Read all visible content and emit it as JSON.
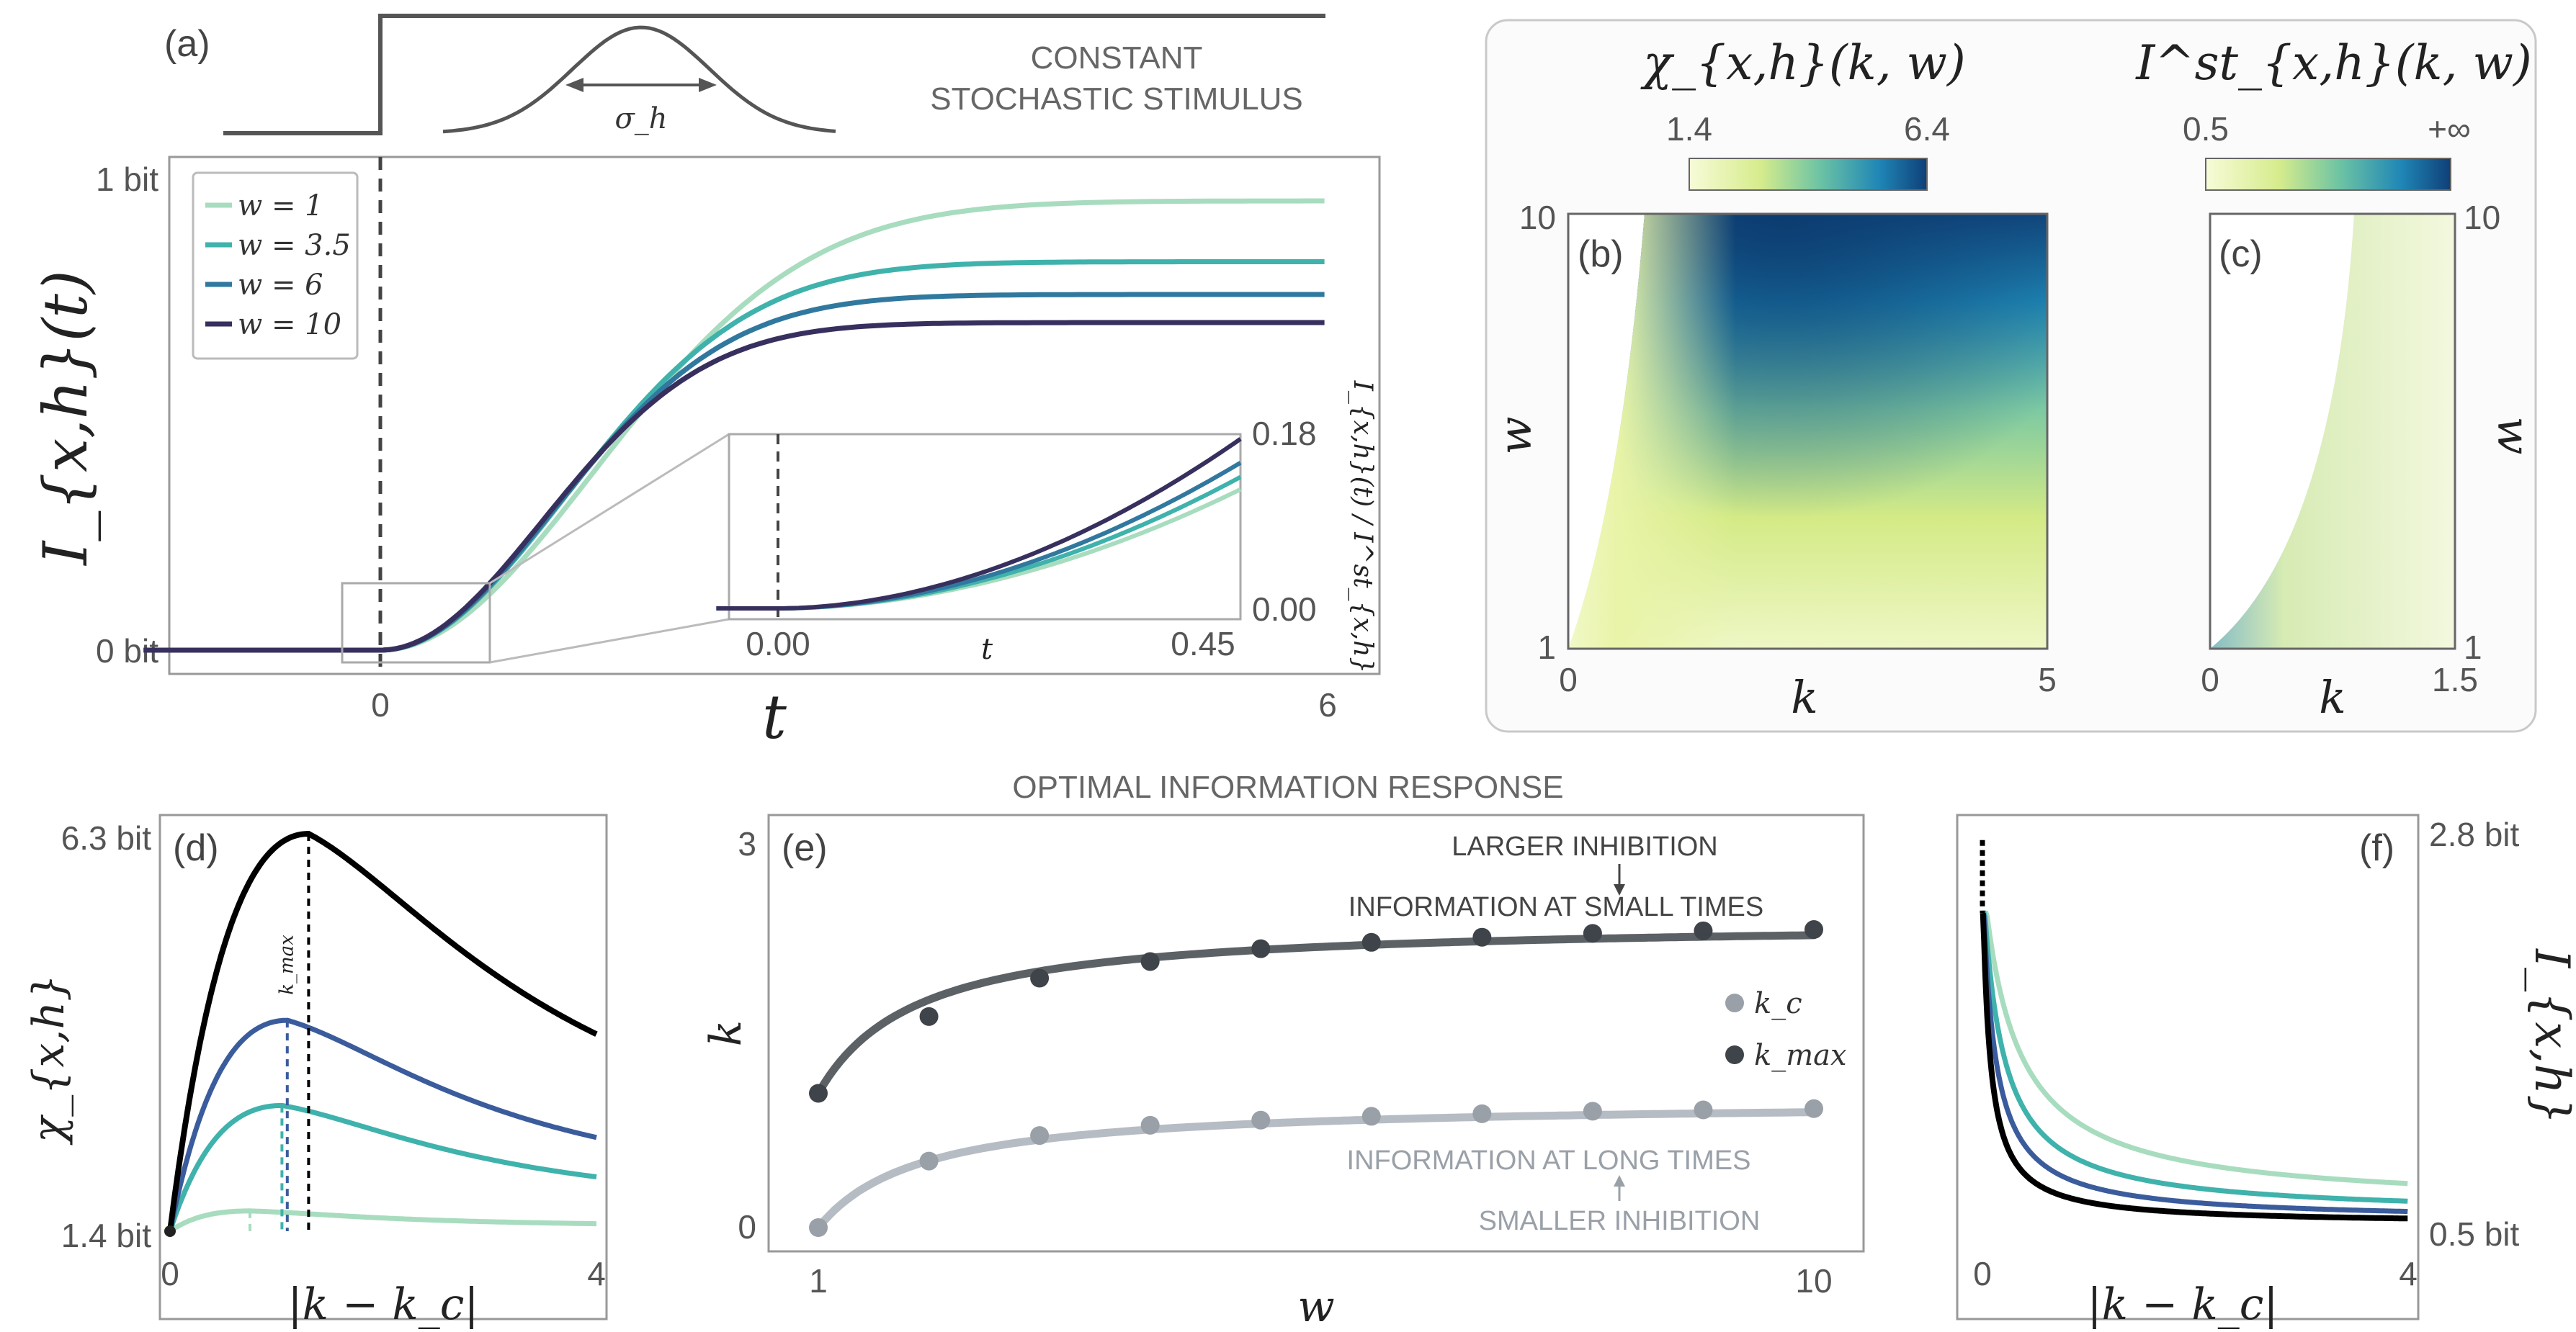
{
  "colors": {
    "w1": "#a8dcbf",
    "w35": "#3fb2ac",
    "w6": "#31789f",
    "w10": "#37305e",
    "kmax_black": "#000000",
    "kmax_dark": "#5c6166",
    "kc_light": "#b6bcc3",
    "frame": "#999999"
  },
  "panel_a": {
    "label": "(a)",
    "stimulus_caption": [
      "CONSTANT",
      "STOCHASTIC STIMULUS"
    ],
    "sigma_label": "σ_h",
    "ylabel": "I_{x,h}(t)",
    "xlabel": "t",
    "yticks": [
      "1 bit",
      "0 bit"
    ],
    "xticks": [
      "0",
      "6"
    ],
    "legend": [
      "w = 1",
      "w = 3.5",
      "w = 6",
      "w = 10"
    ],
    "inset": {
      "xticks": [
        "0.00",
        "0.45"
      ],
      "yticks": [
        "0.18",
        "0.00"
      ],
      "xlabel": "t",
      "ylabel": "I_{x,h}(t) / I^st_{x,h}"
    }
  },
  "panel_b": {
    "label": "(b)",
    "title": "χ_{x,h}(k, w)",
    "colorbar_ticks": [
      "1.4",
      "6.4"
    ],
    "xticks": [
      "0",
      "5"
    ],
    "yticks": [
      "10",
      "1"
    ],
    "xlabel": "k",
    "ylabel": "w"
  },
  "panel_c": {
    "label": "(c)",
    "title": "I^st_{x,h}(k, w)",
    "colorbar_ticks": [
      "0.5",
      "+∞"
    ],
    "xticks": [
      "0",
      "1.5"
    ],
    "yticks": [
      "10",
      "1"
    ],
    "xlabel": "k",
    "ylabel": "w"
  },
  "section_title": "OPTIMAL INFORMATION RESPONSE",
  "panel_d": {
    "label": "(d)",
    "ylabel": "χ_{x,h}",
    "xlabel": "|k − k_c|",
    "yticks": [
      "6.3 bit",
      "1.4 bit"
    ],
    "xticks": [
      "0",
      "4"
    ],
    "kmax_label": "k_max"
  },
  "panel_e": {
    "label": "(e)",
    "ylabel": "k",
    "xlabel": "w",
    "yticks": [
      "3",
      "0"
    ],
    "xticks": [
      "1",
      "10"
    ],
    "legend": [
      "k_c",
      "k_max"
    ],
    "top_caption": [
      "LARGER INHIBITION",
      "INFORMATION AT SMALL TIMES"
    ],
    "bottom_caption": [
      "INFORMATION AT LONG TIMES",
      "SMALLER INHIBITION"
    ]
  },
  "panel_f": {
    "label": "(f)",
    "ylabel": "I_{x,h}",
    "xlabel": "|k − k_c|",
    "yticks": [
      "2.8 bit",
      "0.5 bit"
    ],
    "xticks": [
      "0",
      "4"
    ]
  },
  "chart_data": [
    {
      "type": "line",
      "panel": "a",
      "xlabel": "t",
      "ylabel": "I_{x,h}(t)",
      "xlim": [
        -1.6,
        6.3
      ],
      "ylim": [
        -0.05,
        1.05
      ],
      "series": [
        {
          "name": "w = 1",
          "asymptote": 0.96,
          "tau": 1.9,
          "x": [
            -1.5,
            0,
            0.5,
            1,
            1.5,
            2,
            2.5,
            3,
            3.5,
            4,
            4.5,
            5,
            5.5,
            6
          ],
          "y": [
            0,
            0,
            0.12,
            0.35,
            0.55,
            0.69,
            0.79,
            0.85,
            0.89,
            0.92,
            0.935,
            0.945,
            0.952,
            0.96
          ]
        },
        {
          "name": "w = 3.5",
          "asymptote": 0.83,
          "tau": 1.65,
          "x": [
            -1.5,
            0,
            0.5,
            1,
            1.5,
            2,
            2.5,
            3,
            3.5,
            4,
            4.5,
            5,
            5.5,
            6
          ],
          "y": [
            0,
            0,
            0.11,
            0.31,
            0.48,
            0.6,
            0.68,
            0.74,
            0.77,
            0.795,
            0.81,
            0.818,
            0.824,
            0.83
          ]
        },
        {
          "name": "w = 6",
          "asymptote": 0.76,
          "tau": 1.55,
          "x": [
            -1.5,
            0,
            0.5,
            1,
            1.5,
            2,
            2.5,
            3,
            3.5,
            4,
            4.5,
            5,
            5.5,
            6
          ],
          "y": [
            0,
            0,
            0.11,
            0.3,
            0.45,
            0.56,
            0.63,
            0.68,
            0.71,
            0.73,
            0.745,
            0.752,
            0.757,
            0.76
          ]
        },
        {
          "name": "w = 10",
          "asymptote": 0.7,
          "tau": 1.45,
          "x": [
            -1.5,
            0,
            0.5,
            1,
            1.5,
            2,
            2.5,
            3,
            3.5,
            4,
            4.5,
            5,
            5.5,
            6
          ],
          "y": [
            0,
            0,
            0.11,
            0.29,
            0.43,
            0.53,
            0.59,
            0.63,
            0.66,
            0.675,
            0.687,
            0.694,
            0.698,
            0.7
          ]
        }
      ]
    },
    {
      "type": "line",
      "panel": "a-inset",
      "xlabel": "t",
      "ylabel": "I_{x,h}(t) / I^st_{x,h}",
      "xlim": [
        -0.06,
        0.48
      ],
      "ylim": [
        0,
        0.18
      ],
      "series": [
        {
          "name": "w = 1",
          "end": 0.125
        },
        {
          "name": "w = 3.5",
          "end": 0.138
        },
        {
          "name": "w = 6",
          "end": 0.153
        },
        {
          "name": "w = 10",
          "end": 0.178
        }
      ]
    },
    {
      "type": "heatmap",
      "panel": "b",
      "title": "χ_{x,h}(k, w)",
      "xlim": [
        0,
        5
      ],
      "ylim": [
        1,
        10
      ],
      "zlim": [
        1.4,
        6.4
      ]
    },
    {
      "type": "heatmap",
      "panel": "c",
      "title": "I^st_{x,h}(k, w)",
      "xlim": [
        0,
        1.5
      ],
      "ylim": [
        1,
        10
      ],
      "zlim": [
        0.5,
        "+∞"
      ]
    },
    {
      "type": "line",
      "panel": "d",
      "xlabel": "|k − k_c|",
      "ylabel": "χ_{x,h}",
      "xlim": [
        0,
        4
      ],
      "ylim": [
        1.4,
        6.3
      ],
      "series": [
        {
          "peak": 1.65,
          "kmax": 0.75
        },
        {
          "peak": 2.95,
          "kmax": 1.05
        },
        {
          "peak": 4.0,
          "kmax": 1.1
        },
        {
          "peak": 6.3,
          "kmax": 1.3
        }
      ]
    },
    {
      "type": "scatter",
      "panel": "e",
      "xlabel": "w",
      "ylabel": "k",
      "xlim": [
        1,
        10
      ],
      "ylim": [
        0,
        3
      ],
      "series": [
        {
          "name": "k_max",
          "x": [
            1,
            2,
            3,
            4,
            5,
            6,
            7,
            8,
            9,
            10
          ],
          "y": [
            1.05,
            1.65,
            1.95,
            2.08,
            2.18,
            2.23,
            2.27,
            2.3,
            2.32,
            2.33
          ]
        },
        {
          "name": "k_c",
          "x": [
            1,
            2,
            3,
            4,
            5,
            6,
            7,
            8,
            9,
            10
          ],
          "y": [
            0,
            0.52,
            0.72,
            0.8,
            0.84,
            0.87,
            0.89,
            0.91,
            0.92,
            0.93
          ]
        }
      ]
    },
    {
      "type": "line",
      "panel": "f",
      "xlabel": "|k − k_c|",
      "ylabel": "I_{x,h}",
      "xlim": [
        0,
        4
      ],
      "ylim": [
        0.5,
        2.8
      ],
      "series": [
        {
          "end": 0.62
        },
        {
          "end": 0.57
        },
        {
          "end": 0.54
        },
        {
          "end": 0.52
        }
      ]
    }
  ]
}
